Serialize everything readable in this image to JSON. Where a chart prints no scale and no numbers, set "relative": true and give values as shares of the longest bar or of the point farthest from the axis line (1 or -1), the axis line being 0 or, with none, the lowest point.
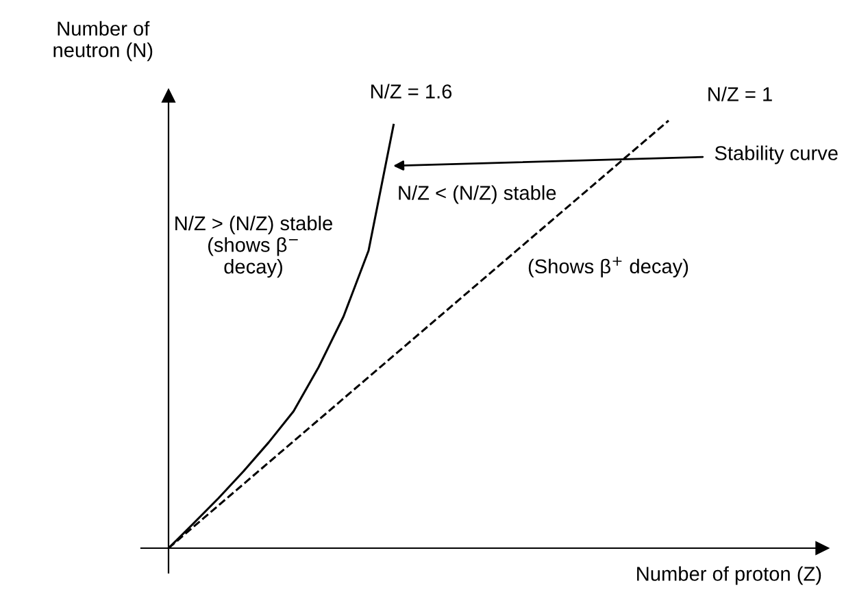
{
  "chart_data": {
    "type": "line",
    "relative": true,
    "xlabel": "Number of proton (Z)",
    "ylabel": "Number of\nneutron (N)",
    "legend": false,
    "marker": "none",
    "categories": [
      null,
      null,
      null,
      null,
      null,
      null,
      null,
      null,
      null,
      null,
      null,
      null,
      null,
      null,
      null,
      null,
      null,
      null,
      null,
      null,
      null
    ],
    "series": [
      {
        "color": "#000000",
        "line_style": "solid",
        "values": [
          0,
          0.058,
          0.117,
          0.18,
          0.247,
          0.32,
          0.423,
          0.542,
          0.696,
          0.99,
          null,
          null,
          null,
          null,
          null,
          null,
          null,
          null,
          null,
          null,
          null
        ]
      },
      {
        "color": "#000000",
        "line_style": "dashed",
        "values": [
          0,
          0.05,
          0.1,
          0.15,
          0.2,
          0.25,
          0.3,
          0.35,
          0.4,
          0.45,
          0.5,
          0.55,
          0.6,
          0.65,
          0.7,
          0.75,
          0.8,
          0.85,
          0.9,
          0.95,
          1.0
        ]
      }
    ],
    "annotations": [
      "N/Z = 1.6",
      "N/Z = 1",
      "Stability curve",
      "N/Z > (N/Z) stable\n(shows β$^{−}$\ndecay)",
      "N/Z < (N/Z) stable",
      "(Shows β$^{+}$ decay)"
    ]
  }
}
